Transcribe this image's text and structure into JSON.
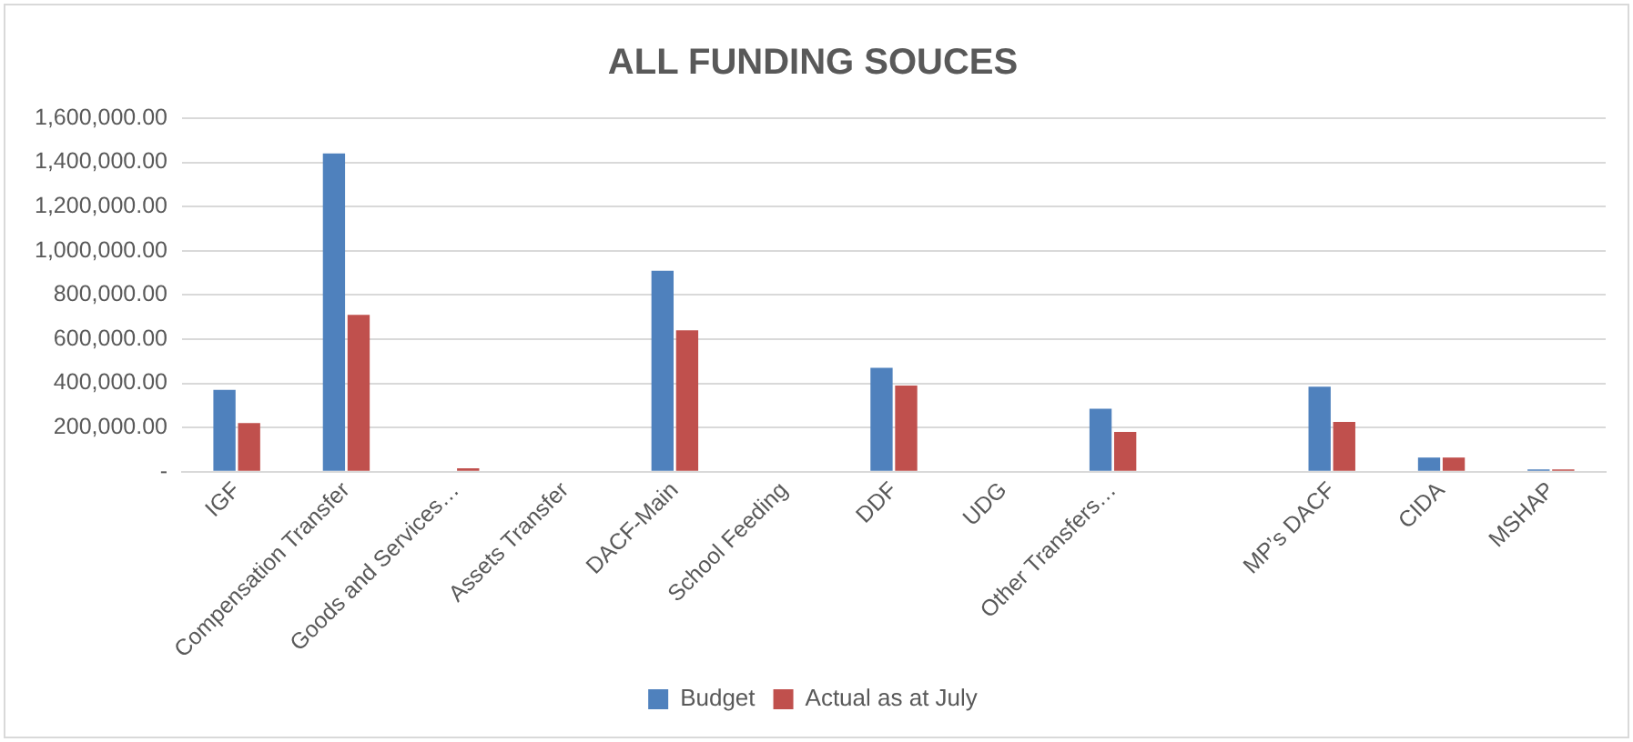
{
  "chart_data": {
    "type": "bar",
    "title": "ALL FUNDING SOUCES",
    "categories": [
      "IGF",
      "Compensation Transfer",
      "Goods and Services…",
      "Assets Transfer",
      "DACF-Main",
      "School Feeding",
      "DDF",
      "UDG",
      "Other Transfers…",
      null,
      "MP’s DACF",
      "CIDA",
      "MSHAP"
    ],
    "series": [
      {
        "name": "Budget",
        "color": "#4f81bd",
        "values": [
          370000,
          1440000,
          0,
          0,
          910000,
          0,
          470000,
          0,
          285000,
          0,
          385000,
          64000,
          10000
        ]
      },
      {
        "name": "Actual as at July",
        "color": "#c0504d",
        "values": [
          220000,
          710000,
          15000,
          0,
          640000,
          0,
          390000,
          0,
          180000,
          0,
          225000,
          64000,
          10000
        ]
      }
    ],
    "ylim": [
      0,
      1600000
    ],
    "yticks": [
      {
        "value": 0,
        "label": "-"
      },
      {
        "value": 200000,
        "label": "200,000.00"
      },
      {
        "value": 400000,
        "label": "400,000.00"
      },
      {
        "value": 600000,
        "label": "600,000.00"
      },
      {
        "value": 800000,
        "label": "800,000.00"
      },
      {
        "value": 1000000,
        "label": "1,000,000.00"
      },
      {
        "value": 1200000,
        "label": "1,200,000.00"
      },
      {
        "value": 1400000,
        "label": "1,400,000.00"
      },
      {
        "value": 1600000,
        "label": "1,600,000.00"
      }
    ],
    "grid": "y",
    "legend": "bottom"
  }
}
